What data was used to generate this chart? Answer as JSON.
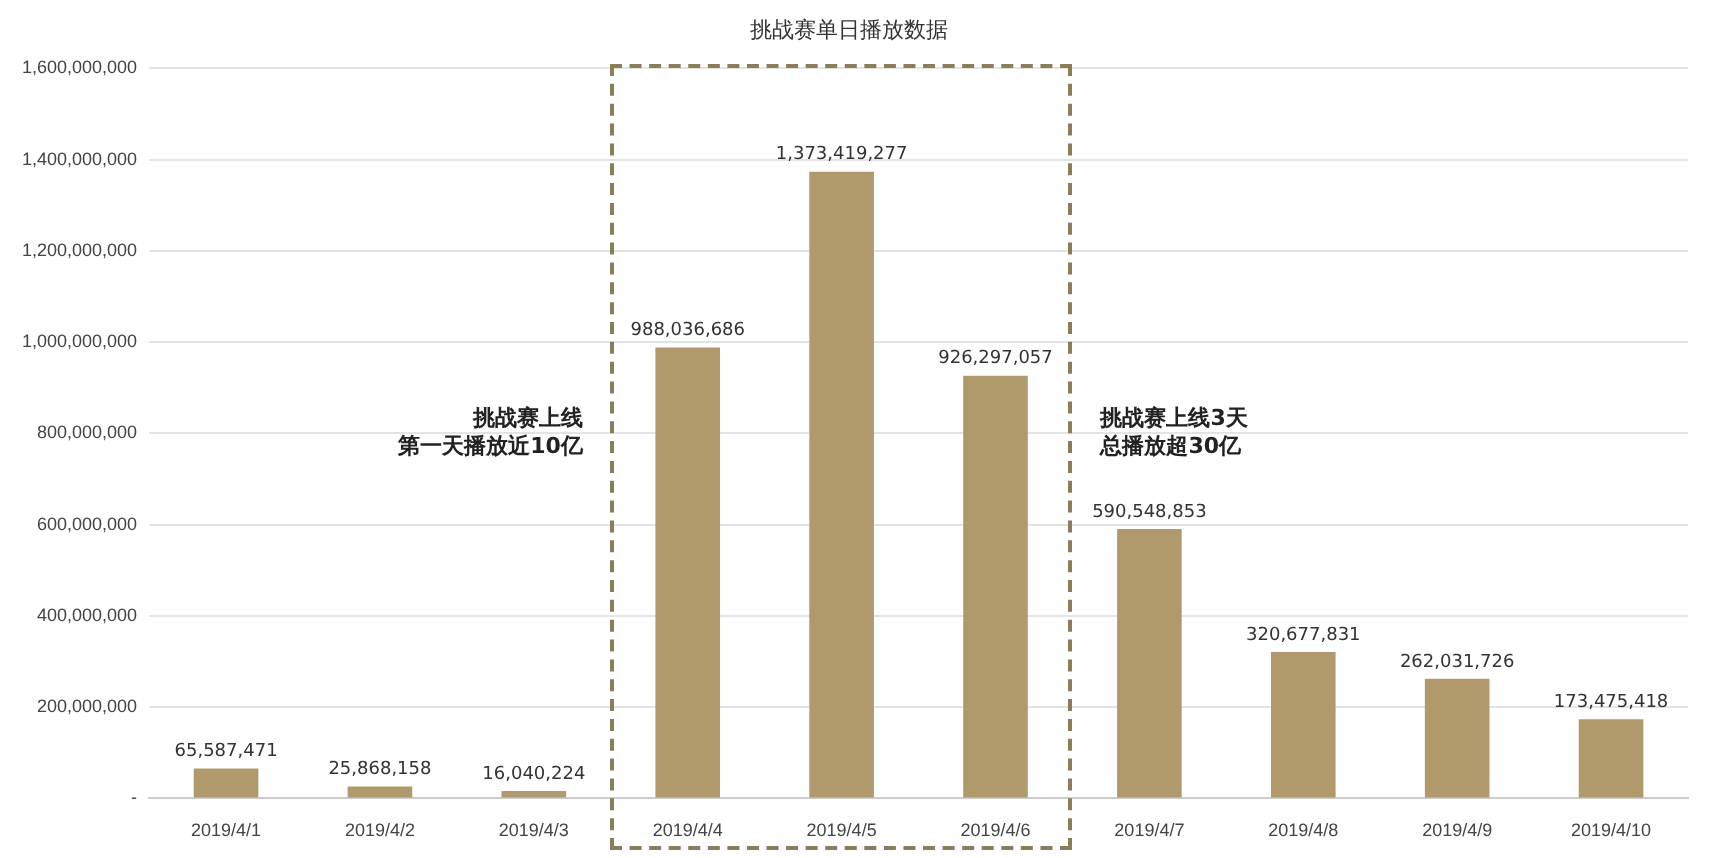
{
  "chart_data": {
    "type": "bar",
    "title": "挑战赛单日播放数据",
    "categories": [
      "2019/4/1",
      "2019/4/2",
      "2019/4/3",
      "2019/4/4",
      "2019/4/5",
      "2019/4/6",
      "2019/4/7",
      "2019/4/8",
      "2019/4/9",
      "2019/4/10"
    ],
    "values": [
      65587471,
      25868158,
      16040224,
      988036686,
      1373419277,
      926297057,
      590548853,
      320677831,
      262031726,
      173475418
    ],
    "color": "#b09a6b",
    "ylim": [
      0,
      1600000000
    ],
    "yticks": [
      {
        "value": 0,
        "label": "-"
      },
      {
        "value": 200000000,
        "label": "200,000,000"
      },
      {
        "value": 400000000,
        "label": "400,000,000"
      },
      {
        "value": 600000000,
        "label": "600,000,000"
      },
      {
        "value": 800000000,
        "label": "800,000,000"
      },
      {
        "value": 1000000000,
        "label": "1,000,000,000"
      },
      {
        "value": 1200000000,
        "label": "1,200,000,000"
      },
      {
        "value": 1400000000,
        "label": "1,400,000,000"
      },
      {
        "value": 1600000000,
        "label": "1,600,000,000"
      }
    ],
    "grid": "y",
    "value_labels": [
      "65,587,471",
      "25,868,158",
      "16,040,224",
      "988,036,686",
      "1,373,419,277",
      "926,297,057",
      "590,548,853",
      "320,677,831",
      "262,031,726",
      "173,475,418"
    ],
    "annotations": [
      "挑战赛上线",
      "第一天播放近10亿",
      "挑战赛上线3天",
      "总播放超30亿"
    ]
  }
}
